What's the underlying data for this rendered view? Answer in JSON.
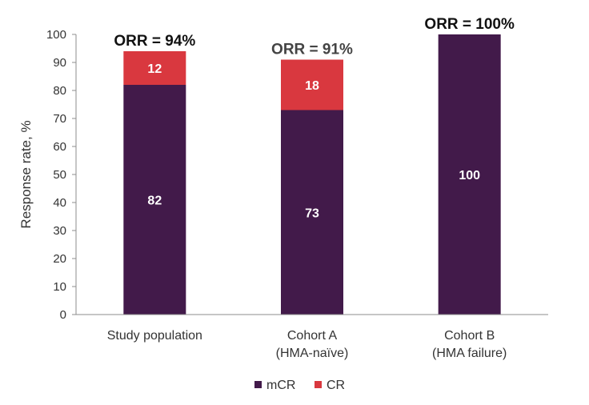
{
  "chart_data": {
    "type": "bar",
    "stacked": true,
    "categories": [
      [
        "Study population"
      ],
      [
        "Cohort A",
        "(HMA-naïve)"
      ],
      [
        "Cohort B",
        "(HMA failure)"
      ]
    ],
    "series": [
      {
        "name": "mCR",
        "values": [
          82,
          73,
          100
        ],
        "color": "#421A4A"
      },
      {
        "name": "CR",
        "values": [
          12,
          18,
          0
        ],
        "color": "#D9383F"
      }
    ],
    "totals_labels": [
      "ORR = 94%",
      "ORR = 91%",
      "ORR = 100%"
    ],
    "totals_label_colors": [
      "#111111",
      "#444444",
      "#111111"
    ],
    "ylabel": "Response rate, %",
    "xlabel": "",
    "ylim": [
      0,
      100
    ],
    "yticks": [
      0,
      10,
      20,
      30,
      40,
      50,
      60,
      70,
      80,
      90,
      100
    ],
    "grid": false,
    "legend": "bottom-center"
  }
}
